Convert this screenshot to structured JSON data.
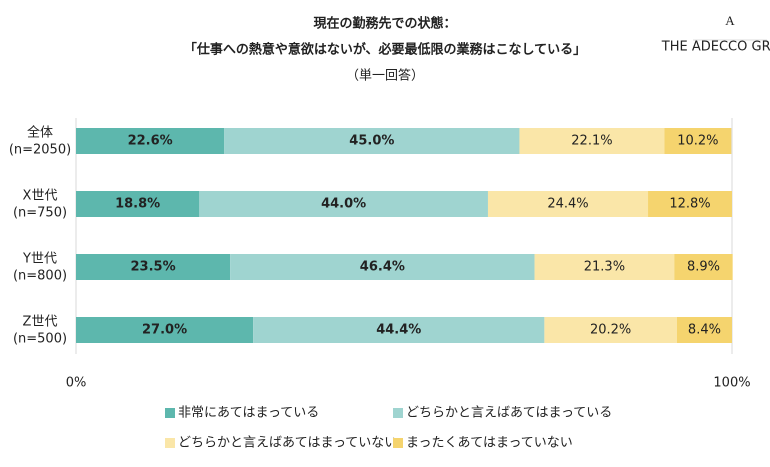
{
  "logo": {
    "mark": "A",
    "text": "THE ADECCO GROUP"
  },
  "chart_data": {
    "type": "stacked_barh",
    "title": "現在の勤務先での状態：",
    "subtitle": "「仕事への熱意や意欲はないが、必要最低限の業務はこなしている」",
    "note": "（単一回答）",
    "categories": [
      "全体\n(n=2050)",
      "X世代\n(n=750)",
      "Y世代\n(n=800)",
      "Z世代\n(n=500)"
    ],
    "series": [
      {
        "name": "非常にあてはまっている",
        "color": "#5db7ad",
        "values": [
          22.6,
          18.8,
          23.5,
          27.0
        ],
        "value_labels": [
          "22.6%",
          "18.8%",
          "23.5%",
          "27.0%"
        ],
        "bold": true
      },
      {
        "name": "どちらかと言えばあてはまっている",
        "color": "#9fd4d0",
        "values": [
          45.0,
          44.0,
          46.4,
          44.4
        ],
        "value_labels": [
          "45.0%",
          "44.0%",
          "46.4%",
          "44.4%"
        ],
        "bold": true
      },
      {
        "name": "どちらかと言えばあてはまっていない",
        "color": "#fae6a8",
        "values": [
          22.1,
          24.4,
          21.3,
          20.2
        ],
        "value_labels": [
          "22.1%",
          "24.4%",
          "21.3%",
          "20.2%"
        ],
        "bold": false
      },
      {
        "name": "まったくあてはまっていない",
        "color": "#f5d46e",
        "values": [
          10.2,
          12.8,
          8.9,
          8.4
        ],
        "value_labels": [
          "10.2%",
          "12.8%",
          "8.9%",
          "8.4%"
        ],
        "bold": false
      }
    ],
    "xlim": [
      0,
      100
    ],
    "xticks": [
      {
        "value": 0,
        "label": "0%"
      },
      {
        "value": 100,
        "label": "100%"
      }
    ],
    "grid": true
  }
}
